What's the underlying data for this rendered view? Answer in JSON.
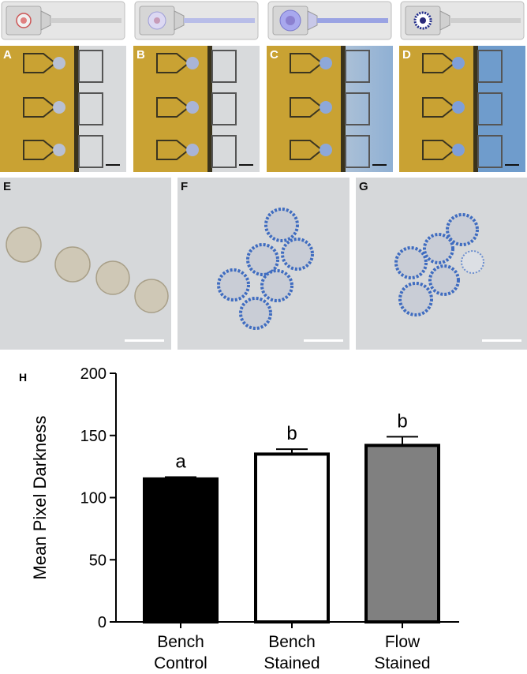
{
  "panels": {
    "chips": [
      {
        "label": "A",
        "stain": "none"
      },
      {
        "label": "B",
        "stain": "light"
      },
      {
        "label": "C",
        "stain": "medium"
      },
      {
        "label": "D",
        "stain": "full"
      }
    ],
    "micrographs": [
      {
        "label": "E"
      },
      {
        "label": "F"
      },
      {
        "label": "G"
      }
    ],
    "chart_label": "H"
  },
  "colors": {
    "chip_yellow": "#c9a233",
    "stain_blue": "#6f9ccc",
    "bar_control": "#000000",
    "bar_stained_bench": "#ffffff",
    "bar_flow": "#808080"
  },
  "chart_data": {
    "type": "bar",
    "categories": [
      {
        "line1": "Bench",
        "line2": "Control"
      },
      {
        "line1": "Bench",
        "line2": "Stained"
      },
      {
        "line1": "Flow",
        "line2": "Stained"
      }
    ],
    "values": [
      115,
      135,
      142
    ],
    "errors": [
      1.5,
      4,
      7
    ],
    "significance": [
      "a",
      "b",
      "b"
    ],
    "bar_fills": [
      "#000000",
      "#ffffff",
      "#808080"
    ],
    "ylabel": "Mean Pixel Darkness",
    "xlabel": "",
    "ylim": [
      0,
      200
    ],
    "yticks": [
      0,
      50,
      100,
      150,
      200
    ]
  }
}
